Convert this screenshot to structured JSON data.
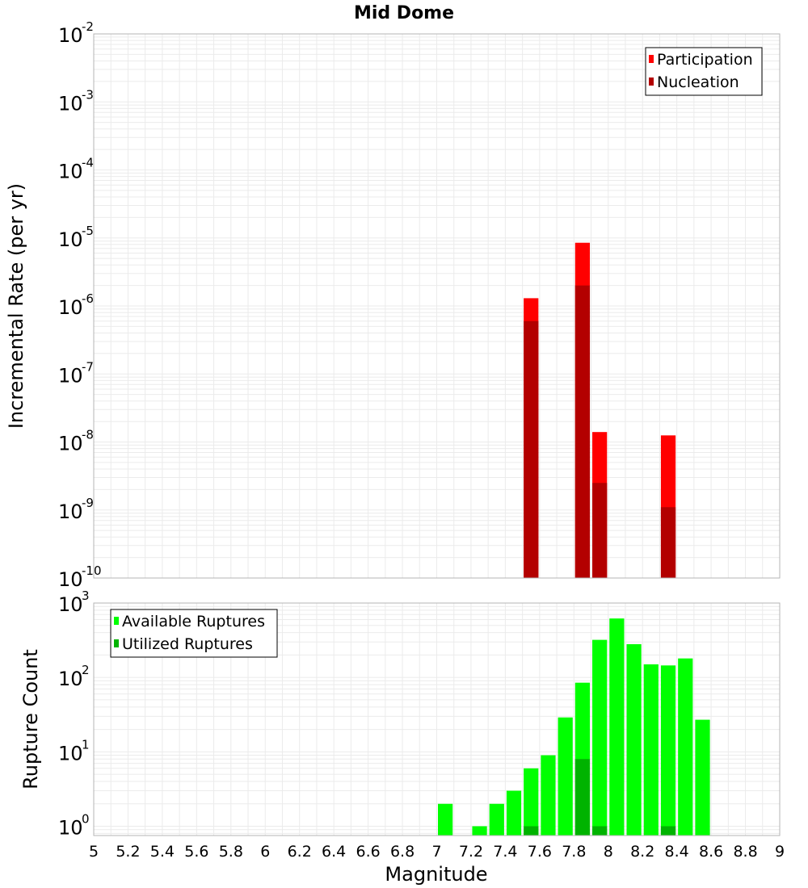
{
  "chart_data": [
    {
      "type": "bar",
      "title": "Mid Dome",
      "xlabel": "",
      "ylabel": "Incremental Rate (per yr)",
      "yscale": "log",
      "xlim": [
        5,
        9
      ],
      "ylim": [
        1e-10,
        0.01
      ],
      "y_tick_exponents": [
        -2,
        -3,
        -4,
        -5,
        -6,
        -7,
        -8,
        -9,
        -10
      ],
      "grid": true,
      "legend_position": "top-right",
      "bin_width": 0.1,
      "series": [
        {
          "name": "Participation",
          "color": "#ff0000",
          "x": [
            7.55,
            7.85,
            7.95,
            8.35
          ],
          "values": [
            1.3e-06,
            8.5e-06,
            1.4e-08,
            1.25e-08
          ]
        },
        {
          "name": "Nucleation",
          "color": "#b30000",
          "x": [
            7.55,
            7.85,
            7.95,
            8.35
          ],
          "values": [
            6e-07,
            2e-06,
            2.5e-09,
            1.1e-09
          ]
        }
      ]
    },
    {
      "type": "bar",
      "title": "",
      "xlabel": "Magnitude",
      "ylabel": "Rupture Count",
      "yscale": "log",
      "xlim": [
        5,
        9
      ],
      "ylim": [
        0.75,
        1000
      ],
      "y_tick_exponents": [
        0,
        1,
        2,
        3
      ],
      "x_ticks": [
        "5",
        "5.2",
        "5.4",
        "5.6",
        "5.8",
        "6",
        "6.2",
        "6.4",
        "6.6",
        "6.8",
        "7",
        "7.2",
        "7.4",
        "7.6",
        "7.8",
        "8",
        "8.2",
        "8.4",
        "8.6",
        "8.8",
        "9"
      ],
      "grid": true,
      "legend_position": "top-left",
      "bin_width": 0.1,
      "series": [
        {
          "name": "Available Ruptures",
          "color": "#00ff00",
          "x": [
            7.05,
            7.25,
            7.35,
            7.45,
            7.55,
            7.65,
            7.75,
            7.85,
            7.95,
            8.05,
            8.15,
            8.25,
            8.35,
            8.45,
            8.55
          ],
          "values": [
            2,
            1,
            2,
            3,
            6,
            9,
            29,
            85,
            320,
            620,
            280,
            150,
            145,
            180,
            27
          ]
        },
        {
          "name": "Utilized Ruptures",
          "color": "#00b300",
          "x": [
            7.55,
            7.85,
            7.95,
            8.35
          ],
          "values": [
            1,
            8,
            1,
            1
          ]
        }
      ]
    }
  ]
}
